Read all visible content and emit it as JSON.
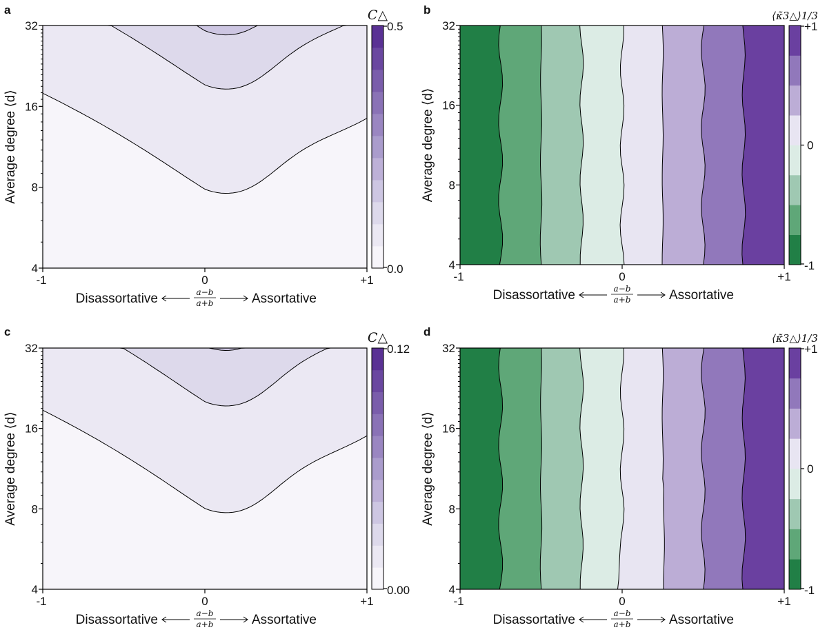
{
  "chart_data": [
    {
      "panel": "a",
      "type": "heatmap",
      "x_ticks": [
        "-1",
        "0",
        "+1"
      ],
      "y_ticks": [
        "4",
        "8",
        "16",
        "32"
      ],
      "xlim": [
        -1,
        1
      ],
      "ylim": [
        4,
        32
      ],
      "xlabel_left": "Disassortative",
      "xlabel_frac_num": "a−b",
      "xlabel_frac_den": "a+b",
      "xlabel_right": "Assortative",
      "ylabel": "Average degree ⟨d⟩",
      "colorbar": {
        "label": "C△",
        "min_label": "0.0",
        "max_label": "0.5",
        "mid_label": "",
        "min": 0,
        "max": 0.5,
        "levels": 11,
        "colors": [
          "#f7f5fa",
          "#ebe8f3",
          "#ddd9eb",
          "#cdc6e2",
          "#bdb0d7",
          "#aa9ccc",
          "#9a86c1",
          "#8a72b6",
          "#7a5dab",
          "#6a47a0",
          "#5a3194"
        ]
      },
      "contour_color": "#000000"
    },
    {
      "panel": "b",
      "type": "heatmap",
      "x_ticks": [
        "-1",
        "0",
        "+1"
      ],
      "y_ticks": [
        "4",
        "8",
        "16",
        "32"
      ],
      "xlim": [
        -1,
        1
      ],
      "ylim": [
        4,
        32
      ],
      "xlabel_left": "Disassortative",
      "xlabel_frac_num": "a−b",
      "xlabel_frac_den": "a+b",
      "xlabel_right": "Assortative",
      "ylabel": "Average degree ⟨d⟩",
      "colorbar": {
        "label": "⟨κ̃3△⟩1/3",
        "min_label": "-1",
        "max_label": "+1",
        "mid_label": "0",
        "min": -1,
        "max": 1,
        "levels": 8,
        "colors": [
          "#217f46",
          "#5fa778",
          "#9fc8b2",
          "#dcece5",
          "#e8e5f2",
          "#bcadd6",
          "#9178bb",
          "#6a40a0"
        ]
      },
      "contour_color": "#000000"
    },
    {
      "panel": "c",
      "type": "heatmap",
      "x_ticks": [
        "-1",
        "0",
        "+1"
      ],
      "y_ticks": [
        "4",
        "8",
        "16",
        "32"
      ],
      "xlim": [
        -1,
        1
      ],
      "ylim": [
        4,
        32
      ],
      "xlabel_left": "Disassortative",
      "xlabel_frac_num": "a−b",
      "xlabel_frac_den": "a+b",
      "xlabel_right": "Assortative",
      "ylabel": "Average degree ⟨d⟩",
      "colorbar": {
        "label": "C△",
        "min_label": "0.00",
        "max_label": "0.12",
        "mid_label": "",
        "min": 0,
        "max": 0.12,
        "levels": 11,
        "colors": [
          "#f7f5fa",
          "#ebe8f3",
          "#ddd9eb",
          "#cdc6e2",
          "#bdb0d7",
          "#aa9ccc",
          "#9a86c1",
          "#8a72b6",
          "#7a5dab",
          "#6a47a0",
          "#5a3194"
        ]
      },
      "contour_color": "#000000"
    },
    {
      "panel": "d",
      "type": "heatmap",
      "x_ticks": [
        "-1",
        "0",
        "+1"
      ],
      "y_ticks": [
        "4",
        "8",
        "16",
        "32"
      ],
      "xlim": [
        -1,
        1
      ],
      "ylim": [
        4,
        32
      ],
      "xlabel_left": "Disassortative",
      "xlabel_frac_num": "a−b",
      "xlabel_frac_den": "a+b",
      "xlabel_right": "Assortative",
      "ylabel": "Average degree ⟨d⟩",
      "colorbar": {
        "label": "⟨κ̃3△⟩1/3",
        "min_label": "-1",
        "max_label": "+1",
        "mid_label": "0",
        "min": -1,
        "max": 1,
        "levels": 8,
        "colors": [
          "#217f46",
          "#5fa778",
          "#9fc8b2",
          "#dcece5",
          "#e8e5f2",
          "#bcadd6",
          "#9178bb",
          "#6a40a0"
        ]
      },
      "contour_color": "#000000"
    }
  ]
}
